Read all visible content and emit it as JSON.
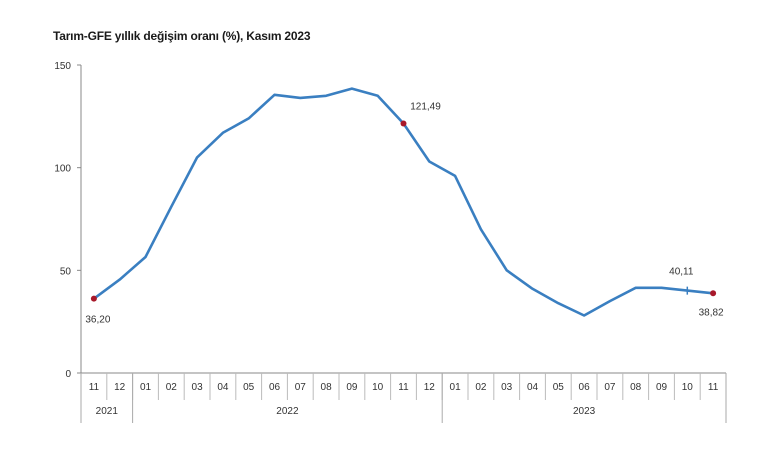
{
  "chart_data": {
    "type": "line",
    "title": "Tarım-GFE yıllık değişim oranı (%), Kasım 2023",
    "xlabel": "",
    "ylabel": "",
    "ylim": [
      0,
      150
    ],
    "yticks": [
      0,
      50,
      100,
      150
    ],
    "grid": false,
    "legend": null,
    "categories": [
      "11",
      "12",
      "01",
      "02",
      "03",
      "04",
      "05",
      "06",
      "07",
      "08",
      "09",
      "10",
      "11",
      "12",
      "01",
      "02",
      "03",
      "04",
      "05",
      "06",
      "07",
      "08",
      "09",
      "10",
      "11"
    ],
    "year_groups": [
      {
        "label": "2021",
        "months": 2
      },
      {
        "label": "2022",
        "months": 12
      },
      {
        "label": "2023",
        "months": 11
      }
    ],
    "series": [
      {
        "name": "Tarım-GFE yıllık değişim oranı (%)",
        "color": "#3a7fc1",
        "values": [
          36.2,
          45.5,
          56.5,
          81,
          105,
          117,
          124,
          135.5,
          134,
          135,
          138.5,
          135,
          121.49,
          103,
          96,
          70,
          50,
          41,
          34,
          28,
          35,
          41.5,
          41.5,
          40.11,
          38.82
        ]
      }
    ],
    "annotations": [
      {
        "index": 0,
        "label": "36,20",
        "marker": true
      },
      {
        "index": 12,
        "label": "121,49",
        "marker": true
      },
      {
        "index": 23,
        "label": "40,11",
        "marker": false
      },
      {
        "index": 24,
        "label": "38,82",
        "marker": true
      }
    ],
    "marker_color": "#a8182a"
  }
}
